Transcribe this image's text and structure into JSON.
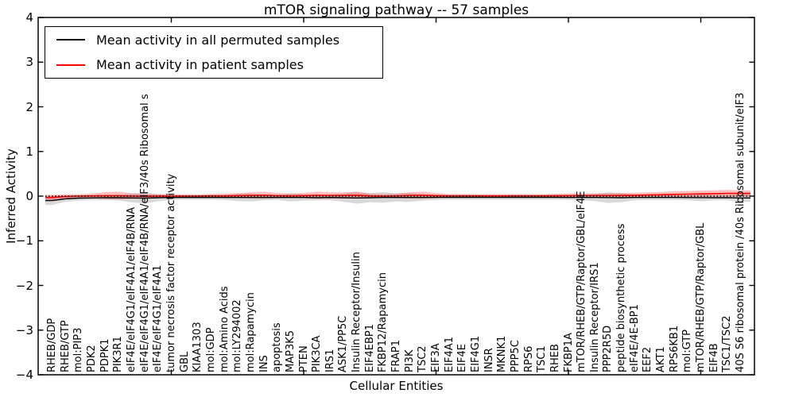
{
  "legend": [
    {
      "label": "Mean activity in all permuted samples",
      "color": "#000000"
    },
    {
      "label": "Mean activity in patient samples",
      "color": "#ff0000"
    }
  ],
  "chart_data": {
    "type": "line",
    "title": "mTOR signaling pathway -- 57 samples",
    "xlabel": "Cellular Entities",
    "ylabel": "Inferred Activity",
    "ylim": [
      -4,
      4
    ],
    "ytick_labels": [
      "4",
      "3",
      "2",
      "1",
      "0",
      "−1",
      "−2",
      "−3",
      "−4"
    ],
    "yticks": [
      4,
      3,
      2,
      1,
      0,
      -1,
      -2,
      -3,
      -4
    ],
    "x_major_ticks": [
      10,
      20,
      30,
      40,
      50
    ],
    "grid": false,
    "legend_position": "upper left",
    "categories": [
      "RHEB/GDP",
      "RHEB/GTP",
      "mol:PIP3",
      "PDK2",
      "PDPK1",
      "PIK3R1",
      "eIF4E/eIF4G1/eIF4A1/eIF4B/RNA",
      "eIF4E/eIF4G1/eIF4A1/eIF4B/RNA/eIF3/40s Ribosomal s",
      "eIF4E/eIF4G1/eIF4A1",
      "tumor necrosis factor receptor activity",
      "GBL",
      "KIAA1303",
      "mol:GDP",
      "mol:Amino Acids",
      "mol:LY294002",
      "mol:Rapamycin",
      "INS",
      "apoptosis",
      "MAP3K5",
      "PTEN",
      "PIK3CA",
      "IRS1",
      "ASK1/PP5C",
      "Insulin Receptor/Insulin",
      "EIF4EBP1",
      "FKBP12/Rapamycin",
      "FRAP1",
      "PI3K",
      "TSC2",
      "EIF3A",
      "EIF4A1",
      "EIF4E",
      "EIF4G1",
      "INSR",
      "MKNK1",
      "PPP5C",
      "RPS6",
      "TSC1",
      "RHEB",
      "FKBP1A",
      "mTOR/RHEB/GTP/Raptor/GBL/eIF4E",
      "Insulin Receptor/IRS1",
      "PPP2R5D",
      "peptide biosynthetic process",
      "eIF4E/4E-BP1",
      "EEF2",
      "AKT1",
      "RPS6KB1",
      "mol:GTP",
      "mTOR/RHEB/GTP/Raptor/GBL",
      "EIF4B",
      "TSC1/TSC2",
      "40S S6 ribosomal protein /40s Ribosomal subunit/eIF3"
    ],
    "series": [
      {
        "name": "Mean activity in all permuted samples",
        "color": "#000000",
        "band_color": "rgba(0,0,0,0.15)",
        "values": [
          -0.1,
          -0.06,
          -0.045,
          -0.04,
          -0.035,
          -0.035,
          -0.04,
          -0.045,
          -0.035,
          -0.03,
          -0.03,
          -0.03,
          -0.03,
          -0.03,
          -0.03,
          -0.03,
          -0.03,
          -0.03,
          -0.03,
          -0.03,
          -0.035,
          -0.03,
          -0.035,
          -0.04,
          -0.035,
          -0.03,
          -0.03,
          -0.03,
          -0.03,
          -0.028,
          -0.028,
          -0.028,
          -0.028,
          -0.028,
          -0.028,
          -0.028,
          -0.028,
          -0.028,
          -0.028,
          -0.03,
          -0.03,
          -0.03,
          -0.032,
          -0.035,
          -0.03,
          -0.03,
          -0.03,
          -0.03,
          -0.032,
          -0.034,
          -0.035,
          -0.035,
          -0.04
        ],
        "band_halfwidth": [
          0.1,
          0.07,
          0.055,
          0.05,
          0.055,
          0.06,
          0.1,
          0.12,
          0.08,
          0.055,
          0.05,
          0.05,
          0.05,
          0.055,
          0.08,
          0.09,
          0.06,
          0.055,
          0.09,
          0.07,
          0.06,
          0.06,
          0.09,
          0.13,
          0.1,
          0.12,
          0.09,
          0.1,
          0.07,
          0.055,
          0.05,
          0.05,
          0.05,
          0.05,
          0.05,
          0.05,
          0.05,
          0.05,
          0.05,
          0.055,
          0.06,
          0.08,
          0.12,
          0.1,
          0.06,
          0.055,
          0.055,
          0.055,
          0.06,
          0.08,
          0.06,
          0.06,
          0.09
        ]
      },
      {
        "name": "Mean activity in patient samples",
        "color": "#ff0000",
        "band_color": "rgba(255,0,0,0.25)",
        "values": [
          -0.03,
          -0.01,
          0.0,
          0.005,
          0.01,
          0.01,
          0.0,
          -0.005,
          0.0,
          0.0,
          0.0,
          0.0,
          0.005,
          0.005,
          0.01,
          0.015,
          0.02,
          0.01,
          0.005,
          0.01,
          0.02,
          0.015,
          0.015,
          0.02,
          0.005,
          0.0,
          0.005,
          0.015,
          0.02,
          0.01,
          0.005,
          0.005,
          0.005,
          0.005,
          0.005,
          0.005,
          0.005,
          0.005,
          0.008,
          0.01,
          0.012,
          0.012,
          0.012,
          0.015,
          0.02,
          0.025,
          0.03,
          0.04,
          0.045,
          0.05,
          0.055,
          0.06,
          0.06
        ],
        "band_halfwidth": [
          0.06,
          0.05,
          0.045,
          0.05,
          0.08,
          0.09,
          0.06,
          0.05,
          0.045,
          0.04,
          0.04,
          0.04,
          0.045,
          0.05,
          0.055,
          0.07,
          0.08,
          0.06,
          0.05,
          0.06,
          0.08,
          0.07,
          0.07,
          0.08,
          0.05,
          0.045,
          0.05,
          0.07,
          0.08,
          0.06,
          0.045,
          0.045,
          0.04,
          0.04,
          0.04,
          0.04,
          0.04,
          0.04,
          0.045,
          0.05,
          0.05,
          0.05,
          0.05,
          0.055,
          0.055,
          0.06,
          0.065,
          0.07,
          0.07,
          0.075,
          0.075,
          0.08,
          0.07
        ]
      }
    ],
    "reference_line": {
      "y": 0,
      "style": "dotted",
      "color": "#000000"
    }
  }
}
